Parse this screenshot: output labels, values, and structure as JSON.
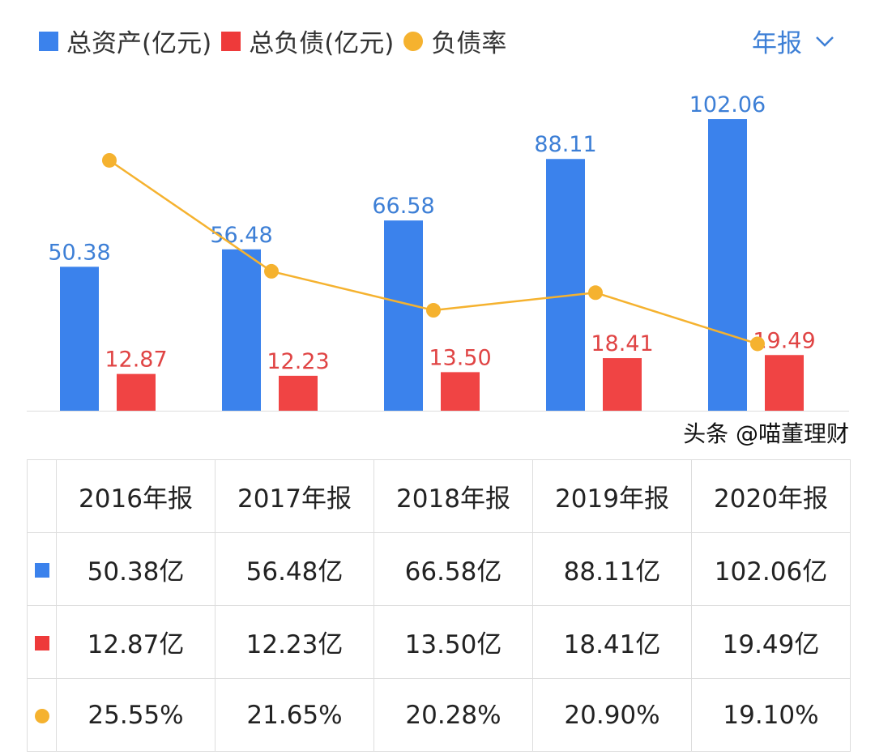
{
  "legend": [
    {
      "label": "总资产(亿元)",
      "color": "#3b82ec"
    },
    {
      "label": "总负债(亿元)",
      "color": "#ee3a3a"
    },
    {
      "label": "负债率",
      "color": "#f5b22f"
    }
  ],
  "period_selector": {
    "label": "年报",
    "icon": "chevron-down-icon"
  },
  "chart_data": {
    "type": "bar+line",
    "categories": [
      "2016年报",
      "2017年报",
      "2018年报",
      "2019年报",
      "2020年报"
    ],
    "series": [
      {
        "name": "总资产(亿元)",
        "type": "bar",
        "color": "#3b82ec",
        "values": [
          50.38,
          56.48,
          66.58,
          88.11,
          102.06
        ],
        "labels": [
          "50.38",
          "56.48",
          "66.58",
          "88.11",
          "102.06"
        ]
      },
      {
        "name": "总负债(亿元)",
        "type": "bar",
        "color": "#f04444",
        "values": [
          12.87,
          12.23,
          13.5,
          18.41,
          19.49
        ],
        "labels": [
          "12.87",
          "12.23",
          "13.50",
          "18.41",
          "19.49"
        ]
      },
      {
        "name": "负债率",
        "type": "line",
        "color": "#f5b22f",
        "values": [
          25.55,
          21.65,
          20.28,
          20.9,
          19.1
        ]
      }
    ],
    "ylim": [
      0,
      115.4
    ],
    "y2lim": [
      16.75,
      28.34
    ],
    "grid": false,
    "legend_position": "top-left"
  },
  "table": {
    "header": [
      "2016年报",
      "2017年报",
      "2018年报",
      "2019年报",
      "2020年报"
    ],
    "rows": [
      {
        "marker": "square",
        "color": "#3b82ec",
        "cells": [
          "50.38亿",
          "56.48亿",
          "66.58亿",
          "88.11亿",
          "102.06亿"
        ]
      },
      {
        "marker": "square",
        "color": "#ee3a3a",
        "cells": [
          "12.87亿",
          "12.23亿",
          "13.50亿",
          "18.41亿",
          "19.49亿"
        ]
      },
      {
        "marker": "circle",
        "color": "#f5b22f",
        "cells": [
          "25.55%",
          "21.65%",
          "20.28%",
          "20.90%",
          "19.10%"
        ]
      }
    ]
  },
  "watermark": "头条 @喵董理财"
}
